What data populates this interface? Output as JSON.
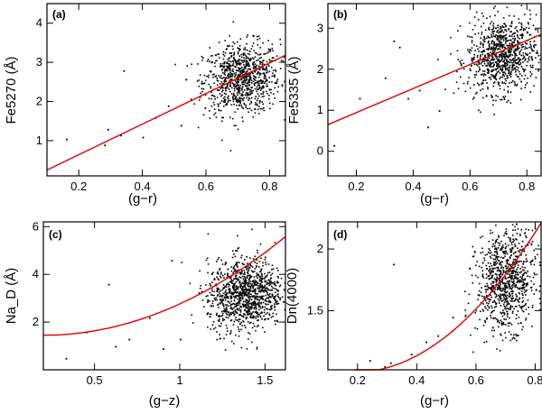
{
  "chart_data": [
    {
      "panel": "(a)",
      "type": "scatter",
      "xlabel": "(g−r)",
      "ylabel": "Fe5270 (Å)",
      "xlim": [
        0.1,
        0.85
      ],
      "ylim": [
        0.1,
        4.5
      ],
      "xticks": [
        0.2,
        0.4,
        0.6,
        0.8
      ],
      "yticks": [
        1,
        2,
        3,
        4
      ],
      "fit": {
        "kind": "linear",
        "x": [
          0.1,
          0.85
        ],
        "y": [
          0.25,
          3.18
        ]
      },
      "cloud": {
        "x_center": 0.71,
        "x_spread": 0.06,
        "y_center": 2.6,
        "y_spread": 0.45,
        "count": 900
      },
      "outliers": [
        [
          0.16,
          1.05
        ],
        [
          0.28,
          0.9
        ],
        [
          0.34,
          2.8
        ],
        [
          0.29,
          1.3
        ],
        [
          0.4,
          1.1
        ],
        [
          0.44,
          1.6
        ],
        [
          0.48,
          1.9
        ],
        [
          0.52,
          1.4
        ],
        [
          0.33,
          1.15
        ]
      ]
    },
    {
      "panel": "(b)",
      "type": "scatter",
      "xlabel": "(g−r)",
      "ylabel": "Fe5335 (Å)",
      "xlim": [
        0.1,
        0.85
      ],
      "ylim": [
        -0.6,
        3.6
      ],
      "xticks": [
        0.2,
        0.4,
        0.6,
        0.8
      ],
      "yticks": [
        0,
        1,
        2,
        3
      ],
      "fit": {
        "kind": "linear",
        "x": [
          0.1,
          0.85
        ],
        "y": [
          0.65,
          2.85
        ]
      },
      "cloud": {
        "x_center": 0.71,
        "x_spread": 0.06,
        "y_center": 2.35,
        "y_spread": 0.45,
        "count": 900
      },
      "outliers": [
        [
          0.12,
          0.15
        ],
        [
          0.21,
          1.3
        ],
        [
          0.3,
          1.8
        ],
        [
          0.33,
          2.7
        ],
        [
          0.35,
          2.55
        ],
        [
          0.38,
          1.3
        ],
        [
          0.45,
          0.6
        ],
        [
          0.49,
          1.0
        ],
        [
          0.42,
          1.5
        ]
      ]
    },
    {
      "panel": "(c)",
      "type": "scatter",
      "xlabel": "(g−z)",
      "ylabel": "Na_D (Å)",
      "xlim": [
        0.2,
        1.62
      ],
      "ylim": [
        0.0,
        6.2
      ],
      "xticks": [
        0.5,
        1,
        1.5
      ],
      "yticks": [
        2,
        4,
        6
      ],
      "fit": {
        "kind": "quadratic",
        "x0": 0.2,
        "a": 1.45,
        "c": 2.05,
        "x_range": [
          0.2,
          1.62
        ]
      },
      "cloud": {
        "x_center": 1.38,
        "x_spread": 0.11,
        "y_center": 3.2,
        "y_spread": 0.75,
        "count": 1100
      },
      "outliers": [
        [
          0.33,
          0.5
        ],
        [
          0.45,
          1.6
        ],
        [
          0.58,
          3.6
        ],
        [
          0.62,
          1.0
        ],
        [
          0.7,
          1.3
        ],
        [
          0.82,
          2.2
        ],
        [
          0.9,
          0.9
        ],
        [
          0.95,
          4.6
        ],
        [
          1.0,
          1.3
        ]
      ]
    },
    {
      "panel": "(d)",
      "type": "scatter",
      "xlabel": "(g−r)",
      "ylabel": "Dn(4000)",
      "xlim": [
        0.1,
        0.82
      ],
      "ylim": [
        1.02,
        2.22
      ],
      "xticks": [
        0.2,
        0.4,
        0.6,
        0.8
      ],
      "yticks": [
        1.5,
        2
      ],
      "fit": {
        "kind": "quadratic",
        "x0": 0.19,
        "a": 1.0,
        "c": 3.05,
        "x_range": [
          0.19,
          0.82
        ]
      },
      "cloud": {
        "x_center": 0.7,
        "x_spread": 0.05,
        "y_center": 1.75,
        "y_spread": 0.2,
        "count": 900
      },
      "outliers": [
        [
          0.32,
          1.88
        ],
        [
          0.24,
          1.1
        ],
        [
          0.29,
          1.05
        ],
        [
          0.31,
          1.08
        ],
        [
          0.38,
          1.15
        ],
        [
          0.43,
          1.25
        ],
        [
          0.47,
          1.3
        ],
        [
          0.52,
          1.45
        ]
      ]
    }
  ]
}
